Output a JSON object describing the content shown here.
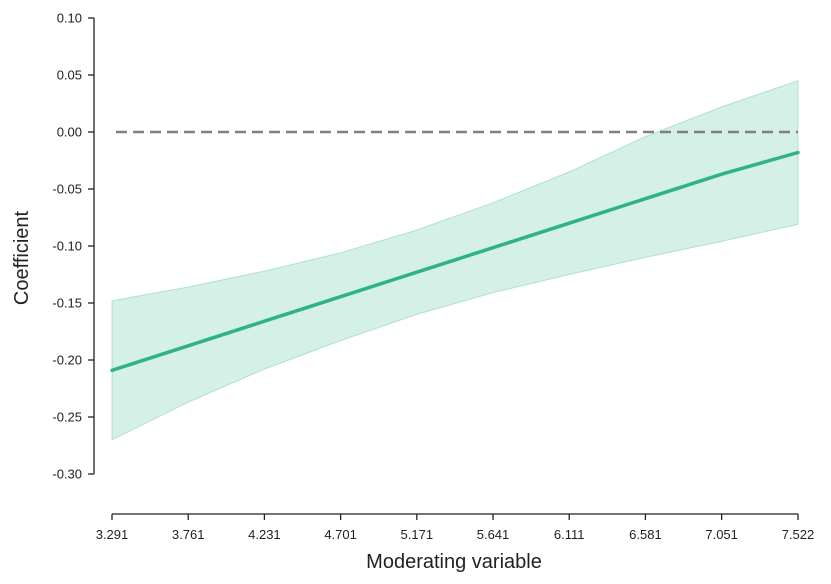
{
  "chart_data": {
    "type": "line",
    "title": "",
    "xlabel": "Moderating variable",
    "ylabel": "Coefficient",
    "xlim": [
      3.291,
      7.522
    ],
    "ylim": [
      -0.33,
      0.1
    ],
    "x_ticks": [
      "3.291",
      "3.761",
      "4.231",
      "4.701",
      "5.171",
      "5.641",
      "6.111",
      "6.581",
      "7.051",
      "7.522"
    ],
    "y_ticks": [
      "0.10",
      "0.05",
      "0.00",
      "-0.05",
      "-0.10",
      "-0.15",
      "-0.20",
      "-0.25",
      "-0.30"
    ],
    "grid": false,
    "legend": "none",
    "reference_line": {
      "y": 0.0,
      "style": "dashed",
      "color": "#808080"
    },
    "series": [
      {
        "x": [
          3.291,
          3.761,
          4.231,
          4.701,
          5.171,
          5.641,
          6.111,
          6.581,
          7.051,
          7.522
        ],
        "values": [
          -0.209,
          -0.1875,
          -0.166,
          -0.1445,
          -0.123,
          -0.1015,
          -0.08,
          -0.0585,
          -0.037,
          -0.018
        ],
        "lower": [
          -0.27,
          -0.237,
          -0.208,
          -0.183,
          -0.16,
          -0.141,
          -0.125,
          -0.11,
          -0.096,
          -0.081
        ],
        "upper": [
          -0.148,
          -0.136,
          -0.122,
          -0.106,
          -0.086,
          -0.062,
          -0.035,
          -0.004,
          0.022,
          0.045
        ],
        "color": "#2eb482",
        "band_color": "#2eb482"
      }
    ]
  }
}
